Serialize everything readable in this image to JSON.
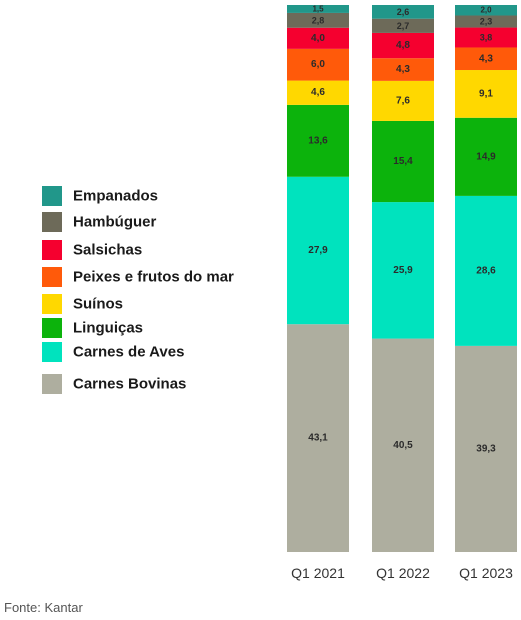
{
  "chart_data": {
    "type": "bar",
    "stacked": true,
    "ylim": [
      0,
      100
    ],
    "categories": [
      "Q1 2021",
      "Q1 2022",
      "Q1 2023"
    ],
    "series": [
      {
        "name": "Carnes Bovinas",
        "color": "#aeae9f",
        "values": [
          43.1,
          40.5,
          39.3
        ],
        "labels": [
          "43,1",
          "40,5",
          "39,3"
        ]
      },
      {
        "name": "Carnes de Aves",
        "color": "#00e3be",
        "values": [
          27.9,
          25.9,
          28.6
        ],
        "labels": [
          "27,9",
          "25,9",
          "28,6"
        ]
      },
      {
        "name": "Linguiças",
        "color": "#0cb30c",
        "values": [
          13.6,
          15.4,
          14.9
        ],
        "labels": [
          "13,6",
          "15,4",
          "14,9"
        ]
      },
      {
        "name": "Suínos",
        "color": "#ffd800",
        "values": [
          4.6,
          7.6,
          9.1
        ],
        "labels": [
          "4,6",
          "7,6",
          "9,1"
        ]
      },
      {
        "name": "Peixes e frutos do mar",
        "color": "#ff5a0a",
        "values": [
          6.0,
          4.3,
          4.3
        ],
        "labels": [
          "6,0",
          "4,3",
          "4,3"
        ]
      },
      {
        "name": "Salsichas",
        "color": "#f5002f",
        "values": [
          4.0,
          4.8,
          3.8
        ],
        "labels": [
          "4,0",
          "4,8",
          "3,8"
        ]
      },
      {
        "name": "Hambúguer",
        "color": "#6d6a59",
        "values": [
          2.8,
          2.7,
          2.3
        ],
        "labels": [
          "2,8",
          "2,7",
          "2,3"
        ]
      },
      {
        "name": "Empanados",
        "color": "#21978a",
        "values": [
          1.5,
          2.6,
          2.0
        ],
        "labels": [
          "1,5",
          "2,6",
          "2,0"
        ]
      }
    ],
    "legend_order": [
      "Empanados",
      "Hambúguer",
      "Salsichas",
      "Peixes e frutos do mar",
      "Suínos",
      "Linguiças",
      "Carnes de Aves",
      "Carnes Bovinas"
    ],
    "legend_position": "left"
  },
  "source": "Fonte: Kantar"
}
